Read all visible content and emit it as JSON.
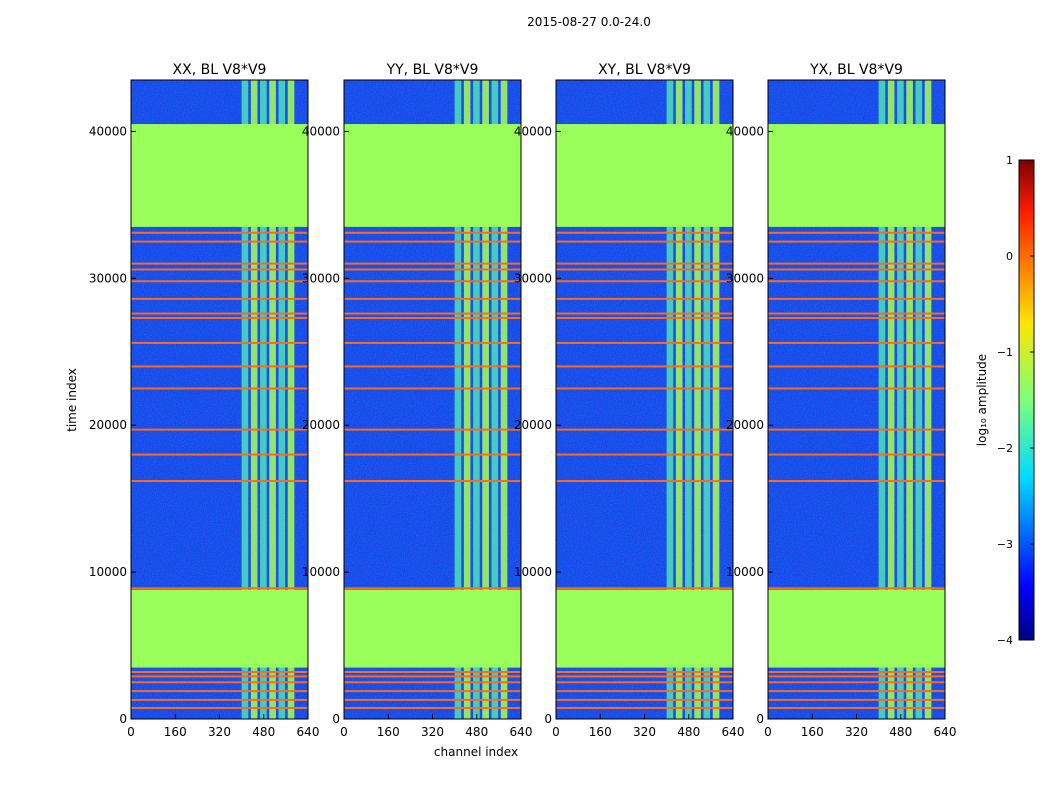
{
  "figure": {
    "suptitle": "2015-08-27 0.0-24.0",
    "xlabel": "channel index",
    "ylabel": "time index",
    "colorbar_label": "log₁₀ amplitude"
  },
  "chart_data": {
    "type": "heatmap",
    "panels": [
      {
        "title": "XX, BL V8*V9",
        "polarization": "XX",
        "baseline": "V8*V9"
      },
      {
        "title": "YY, BL V8*V9",
        "polarization": "YY",
        "baseline": "V8*V9"
      },
      {
        "title": "XY, BL V8*V9",
        "polarization": "XY",
        "baseline": "V8*V9"
      },
      {
        "title": "YX, BL V8*V9",
        "polarization": "YX",
        "baseline": "V8*V9"
      }
    ],
    "x_axis": {
      "label": "channel index",
      "range": [
        0,
        640
      ],
      "ticks": [
        0,
        160,
        320,
        480,
        640
      ]
    },
    "y_axis": {
      "label": "time index",
      "range": [
        0,
        43500
      ],
      "ticks": [
        0,
        10000,
        20000,
        30000,
        40000
      ]
    },
    "colorbar": {
      "label": "log₁₀ amplitude",
      "range": [
        -4,
        1
      ],
      "ticks": [
        -4,
        -3,
        -2,
        -1,
        0,
        1
      ],
      "tick_labels": [
        "−4",
        "−3",
        "−2",
        "−1",
        "0",
        "1"
      ],
      "colormap": "jet"
    },
    "rfi_channel_band": [
      400,
      600
    ],
    "flagged_time_blocks": [
      [
        3500,
        8800
      ],
      [
        33500,
        40500
      ]
    ],
    "bright_rows": [
      750,
      1300,
      1900,
      2500,
      2900,
      3200,
      8900,
      16200,
      18000,
      19700,
      22500,
      24000,
      25600,
      27300,
      27600,
      28600,
      29800,
      30600,
      31000,
      32500,
      33100
    ]
  },
  "colors": {
    "background_field": "#1d3fe8",
    "flagged_green": "#9bff5b",
    "rfi_cyan": "#4fe0b8",
    "bright_row": "#ff6a1a",
    "axis": "#000000"
  }
}
